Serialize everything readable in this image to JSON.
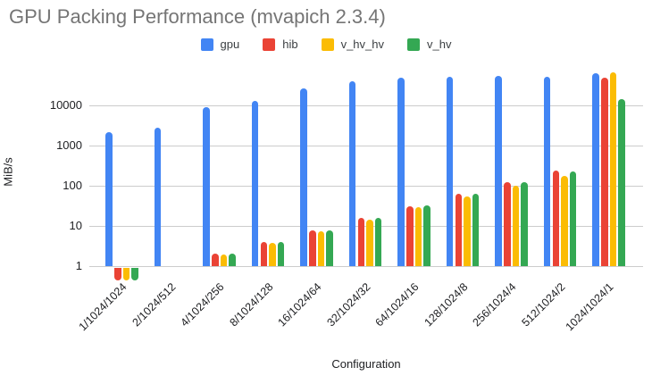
{
  "title": "GPU Packing Performance (mvapich 2.3.4)",
  "chart_data": {
    "type": "bar",
    "title": "GPU Packing Performance (mvapich 2.3.4)",
    "xlabel": "Configuration",
    "ylabel": "MiB/s",
    "y_scale": "log",
    "y_ticks": [
      1,
      10,
      100,
      1000,
      10000
    ],
    "ylim": [
      0.4,
      100000
    ],
    "grid": true,
    "legend_position": "top",
    "categories": [
      "1/1024/1024",
      "2/1024/512",
      "4/1024/256",
      "8/1024/128",
      "16/1024/64",
      "32/1024/32",
      "64/1024/16",
      "128/1024/8",
      "256/1024/4",
      "512/1024/2",
      "1024/1024/1"
    ],
    "series": [
      {
        "name": "gpu",
        "color": "#4285F4",
        "values": [
          2200,
          2800,
          8800,
          13000,
          26000,
          40000,
          48000,
          52000,
          55000,
          52000,
          63000
        ]
      },
      {
        "name": "hib",
        "color": "#EA4335",
        "values": [
          0.5,
          null,
          2.0,
          3.9,
          7.8,
          15.5,
          31,
          62,
          120,
          240,
          50000
        ]
      },
      {
        "name": "v_hv_hv",
        "color": "#FBBC04",
        "values": [
          0.5,
          null,
          1.9,
          3.7,
          7.5,
          14,
          29,
          54,
          100,
          175,
          65000
        ]
      },
      {
        "name": "v_hv",
        "color": "#34A853",
        "values": [
          0.5,
          null,
          2.0,
          3.9,
          7.8,
          15.5,
          32,
          64,
          120,
          230,
          14000
        ]
      }
    ]
  }
}
